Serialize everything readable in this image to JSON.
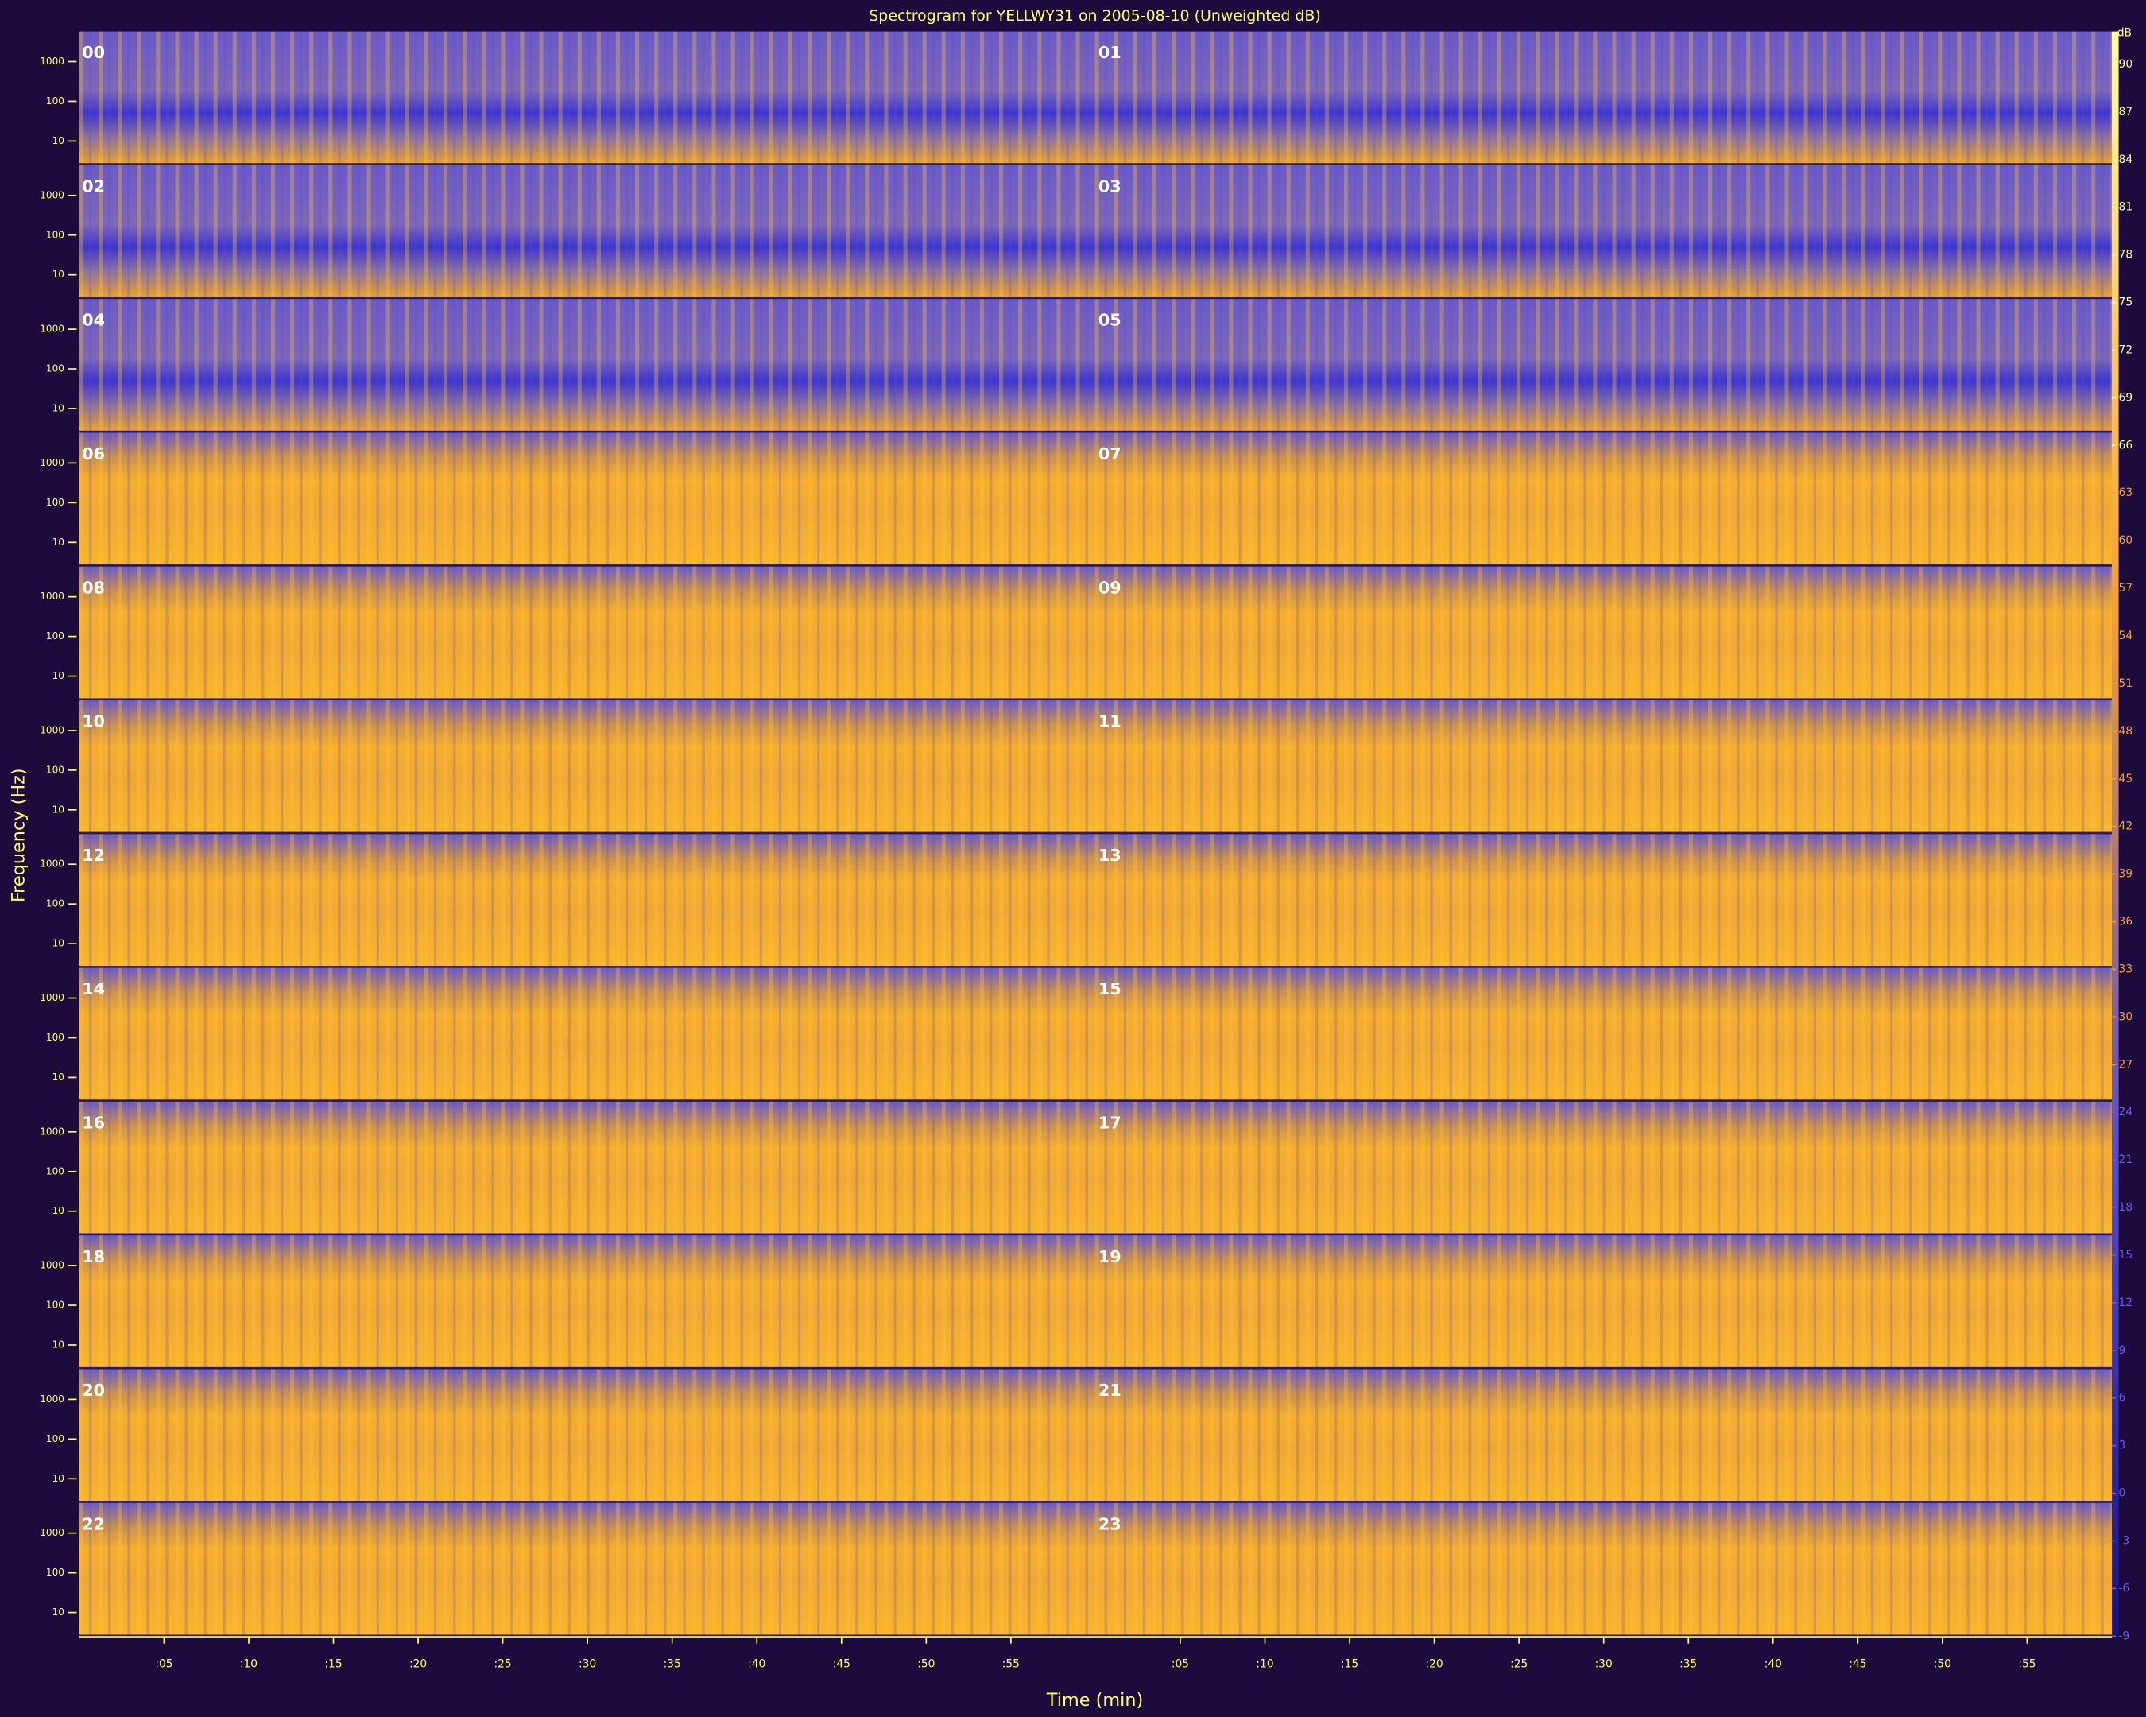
{
  "figure": {
    "title": "Spectrogram for YELLWY31 on 2005-08-10 (Unweighted dB)",
    "y_label": "Frequency (Hz)",
    "x_label": "Time (min)",
    "hours": [
      "00",
      "01",
      "02",
      "03",
      "04",
      "05",
      "06",
      "07",
      "08",
      "09",
      "10",
      "11",
      "12",
      "13",
      "14",
      "15",
      "16",
      "17",
      "18",
      "19",
      "20",
      "21",
      "22",
      "23"
    ],
    "freq_ticks": [
      "1000",
      "100",
      "10"
    ],
    "time_lim": [
      0,
      60
    ],
    "time_ticks": [
      {
        "value": 5,
        "label": ":05"
      },
      {
        "value": 10,
        "label": ":10"
      },
      {
        "value": 15,
        "label": ":15"
      },
      {
        "value": 20,
        "label": ":20"
      },
      {
        "value": 25,
        "label": ":25"
      },
      {
        "value": 30,
        "label": ":30"
      },
      {
        "value": 35,
        "label": ":35"
      },
      {
        "value": 40,
        "label": ":40"
      },
      {
        "value": 45,
        "label": ":45"
      },
      {
        "value": 50,
        "label": ":50"
      },
      {
        "value": 55,
        "label": ":55"
      }
    ],
    "colorbar": {
      "unit": "dB",
      "lim": [
        -9,
        90
      ],
      "ticks": [
        90,
        87,
        84,
        81,
        78,
        75,
        72,
        69,
        66,
        63,
        60,
        57,
        54,
        51,
        48,
        45,
        42,
        39,
        36,
        33,
        30,
        27,
        24,
        21,
        18,
        15,
        12,
        9,
        6,
        3,
        0,
        -3,
        -6,
        -9
      ]
    }
  }
}
